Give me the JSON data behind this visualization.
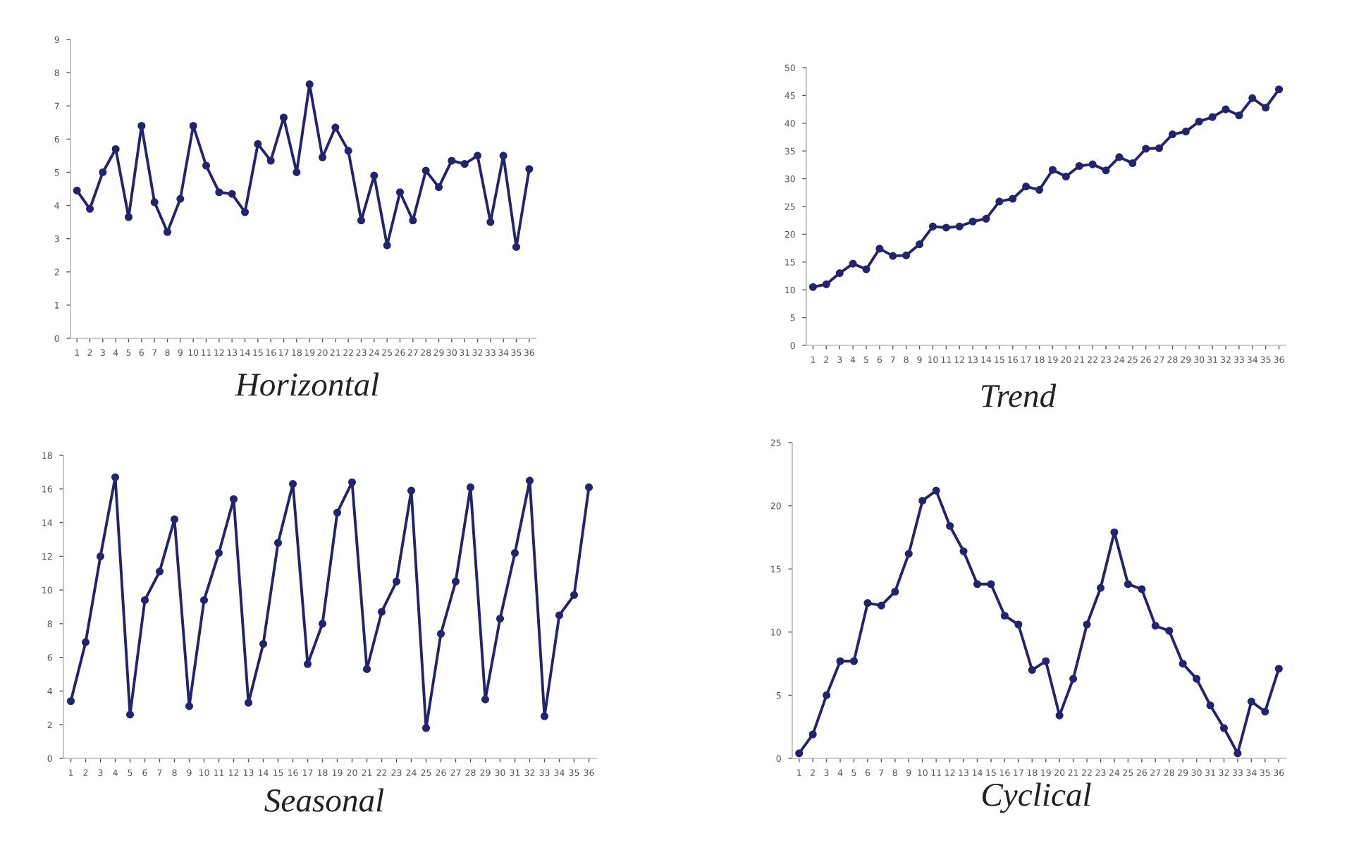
{
  "chart_data": [
    {
      "type": "line",
      "xlabel": "Horizontal",
      "categories": [
        "1",
        "2",
        "3",
        "4",
        "5",
        "6",
        "7",
        "8",
        "9",
        "10",
        "11",
        "12",
        "13",
        "14",
        "15",
        "16",
        "17",
        "18",
        "19",
        "20",
        "21",
        "22",
        "23",
        "24",
        "25",
        "26",
        "27",
        "28",
        "29",
        "30",
        "31",
        "32",
        "33",
        "34",
        "35",
        "36"
      ],
      "ylim": [
        0,
        9
      ],
      "yticks": [
        0,
        1,
        2,
        3,
        4,
        5,
        6,
        7,
        8,
        9
      ],
      "grid": false,
      "legend": false,
      "marker": "circle",
      "line_style": "solid",
      "series": [
        {
          "color": "#24236e",
          "values": [
            4.45,
            3.9,
            5.0,
            5.7,
            3.65,
            6.4,
            4.1,
            3.2,
            4.2,
            6.4,
            5.2,
            4.4,
            4.35,
            3.8,
            5.85,
            5.35,
            6.65,
            5.0,
            7.65,
            5.45,
            6.35,
            5.65,
            3.55,
            4.9,
            2.8,
            4.4,
            3.55,
            5.05,
            4.55,
            5.35,
            5.25,
            5.5,
            3.5,
            5.5,
            2.75,
            5.1
          ]
        }
      ]
    },
    {
      "type": "line",
      "xlabel": "Trend",
      "categories": [
        "1",
        "2",
        "3",
        "4",
        "5",
        "6",
        "7",
        "8",
        "9",
        "10",
        "11",
        "12",
        "13",
        "14",
        "15",
        "16",
        "17",
        "18",
        "19",
        "20",
        "21",
        "22",
        "23",
        "24",
        "25",
        "26",
        "27",
        "28",
        "29",
        "30",
        "31",
        "32",
        "33",
        "34",
        "35",
        "36"
      ],
      "ylim": [
        0,
        50
      ],
      "yticks": [
        0,
        5,
        10,
        15,
        20,
        25,
        30,
        35,
        40,
        45,
        50
      ],
      "grid": false,
      "legend": false,
      "marker": "circle",
      "line_style": "solid",
      "series": [
        {
          "color": "#24236e",
          "values": [
            10.5,
            11,
            13,
            14.7,
            13.7,
            17.4,
            16.1,
            16.2,
            18.2,
            21.4,
            21.2,
            21.4,
            22.3,
            22.8,
            25.9,
            26.4,
            28.6,
            28,
            31.6,
            30.4,
            32.3,
            32.6,
            31.5,
            33.9,
            32.8,
            35.4,
            35.5,
            38,
            38.5,
            40.3,
            41.1,
            42.5,
            41.4,
            44.5,
            42.8,
            46.1
          ]
        }
      ]
    },
    {
      "type": "line",
      "xlabel": "Seasonal",
      "categories": [
        "1",
        "2",
        "3",
        "4",
        "5",
        "6",
        "7",
        "8",
        "9",
        "10",
        "11",
        "12",
        "13",
        "14",
        "15",
        "16",
        "17",
        "18",
        "19",
        "20",
        "21",
        "22",
        "23",
        "24",
        "25",
        "26",
        "27",
        "28",
        "29",
        "30",
        "31",
        "32",
        "33",
        "34",
        "35",
        "36"
      ],
      "ylim": [
        0,
        18
      ],
      "yticks": [
        0,
        2,
        4,
        6,
        8,
        10,
        12,
        14,
        16,
        18
      ],
      "grid": false,
      "legend": false,
      "marker": "circle",
      "line_style": "solid",
      "series": [
        {
          "color": "#24236e",
          "values": [
            3.4,
            6.9,
            12,
            16.7,
            2.6,
            9.4,
            11.1,
            14.2,
            3.1,
            9.4,
            12.2,
            15.4,
            3.3,
            6.8,
            12.8,
            16.3,
            5.6,
            8,
            14.6,
            16.4,
            5.3,
            8.7,
            10.5,
            15.9,
            1.8,
            7.4,
            10.5,
            16.1,
            3.5,
            8.3,
            12.2,
            16.5,
            2.5,
            8.5,
            9.7,
            16.1
          ]
        }
      ]
    },
    {
      "type": "line",
      "xlabel": "Cyclical",
      "categories": [
        "1",
        "2",
        "3",
        "4",
        "5",
        "6",
        "7",
        "8",
        "9",
        "10",
        "11",
        "12",
        "13",
        "14",
        "15",
        "16",
        "17",
        "18",
        "19",
        "20",
        "21",
        "22",
        "23",
        "24",
        "25",
        "26",
        "27",
        "28",
        "29",
        "30",
        "31",
        "32",
        "33",
        "34",
        "35",
        "36"
      ],
      "ylim": [
        0,
        25
      ],
      "yticks": [
        0,
        5,
        10,
        15,
        20,
        25
      ],
      "grid": false,
      "legend": false,
      "marker": "circle",
      "line_style": "solid",
      "series": [
        {
          "color": "#24236e",
          "values": [
            0.4,
            1.9,
            5,
            7.7,
            7.7,
            12.3,
            12.1,
            13.2,
            16.2,
            20.4,
            21.2,
            18.4,
            16.4,
            13.8,
            13.8,
            11.3,
            10.6,
            7,
            7.7,
            3.4,
            6.3,
            10.6,
            13.5,
            17.9,
            13.8,
            13.4,
            10.5,
            10.1,
            7.5,
            6.3,
            4.2,
            2.4,
            0.4,
            4.5,
            3.7,
            7.1
          ]
        }
      ]
    }
  ]
}
